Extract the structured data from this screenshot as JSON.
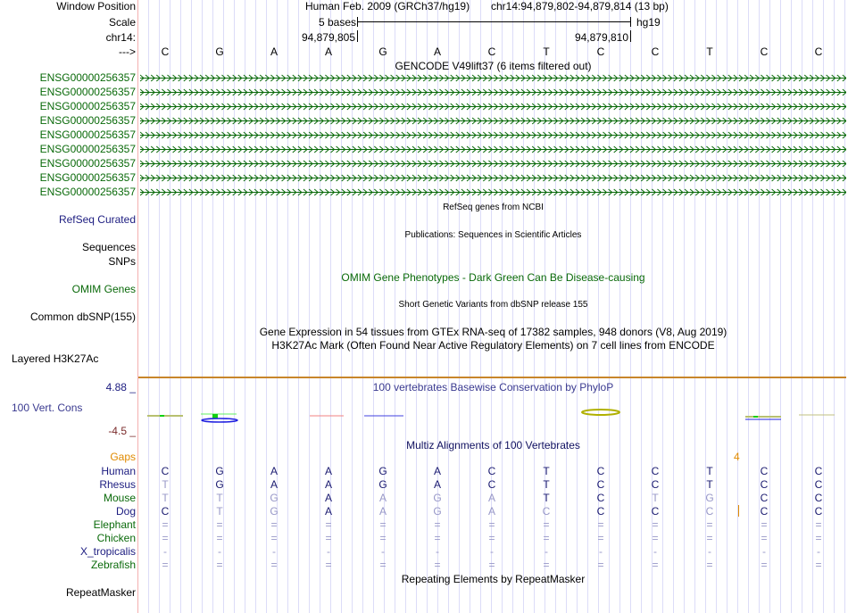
{
  "header": {
    "window_position_label": "Window Position",
    "scale_label": "Scale",
    "chrom_label": "chr14:",
    "strand_label": "--->",
    "assembly": "Human Feb. 2009 (GRCh37/hg19)",
    "position": "chr14:94,879,802-94,879,814 (13 bp)",
    "scale_text": "5 bases",
    "db": "hg19",
    "pos_left": "94,879,805",
    "pos_right": "94,879,810"
  },
  "bases": [
    "C",
    "G",
    "A",
    "A",
    "G",
    "A",
    "C",
    "T",
    "C",
    "C",
    "T",
    "C",
    "C"
  ],
  "gencode": {
    "title": "GENCODE V49lift37 (6 items filtered out)",
    "genes": [
      "ENSG00000256357",
      "ENSG00000256357",
      "ENSG00000256357",
      "ENSG00000256357",
      "ENSG00000256357",
      "ENSG00000256357",
      "ENSG00000256357",
      "ENSG00000256357",
      "ENSG00000256357"
    ]
  },
  "tracks": {
    "refseq_label": "RefSeq Curated",
    "refseq_title": "RefSeq genes from NCBI",
    "pubs_title": "Publications: Sequences in Scientific Articles",
    "sequences_label": "Sequences",
    "snps_label": "SNPs",
    "omim_title": "OMIM Gene Phenotypes - Dark Green Can Be Disease-causing",
    "omim_label": "OMIM Genes",
    "dbsnp_title": "Short Genetic Variants from dbSNP release 155",
    "dbsnp_label": "Common dbSNP(155)",
    "gtex_title": "Gene Expression in 54 tissues from GTEx RNA-seq of 17382 samples, 948 donors (V8, Aug 2019)",
    "h3k27_title": "H3K27Ac Mark (Often Found Near Active Regulatory Elements) on 7 cell lines from ENCODE",
    "h3k27_label": "Layered H3K27Ac",
    "cons_max": "4.88 _",
    "cons_label": "100 Vert. Cons",
    "cons_min": "-4.5 _",
    "cons_title": "100 vertebrates Basewise Conservation by PhyloP",
    "multiz_title": "Multiz Alignments of 100 Vertebrates",
    "gaps_label": "Gaps",
    "gap_count": "4",
    "repeat_title": "Repeating Elements by RepeatMasker",
    "repeat_label": "RepeatMasker"
  },
  "alignment": [
    {
      "species": "Human",
      "color": "#1c1c80",
      "seq": "CGAAGACTCCTCC",
      "dim": "0000000000000"
    },
    {
      "species": "Rhesus",
      "color": "#1c1c80",
      "seq": "TGAAGACTCCTCC",
      "dim": "1000000000000"
    },
    {
      "species": "Mouse",
      "color": "#0a6a0a",
      "seq": "TTGAAGATCTGCC",
      "dim": "1110111001100"
    },
    {
      "species": "Dog",
      "color": "#1c1c80",
      "seq": "CTGAAGACCCCCC",
      "dim": "0110111100100"
    },
    {
      "species": "Elephant",
      "color": "#0a6a0a",
      "seq": "=============",
      "dim": "1111111111111"
    },
    {
      "species": "Chicken",
      "color": "#0a6a0a",
      "seq": "=============",
      "dim": "1111111111111"
    },
    {
      "species": "X_tropicalis",
      "color": "#1c1c80",
      "seq": "-------------",
      "dim": "1111111111111"
    },
    {
      "species": "Zebrafish",
      "color": "#0a6a0a",
      "seq": "=============",
      "dim": "1111111111111"
    }
  ],
  "colors": {
    "navy": "#1c1c80",
    "green": "#0a6a0a",
    "orange": "#e08a00",
    "dim": "#9898c8"
  }
}
